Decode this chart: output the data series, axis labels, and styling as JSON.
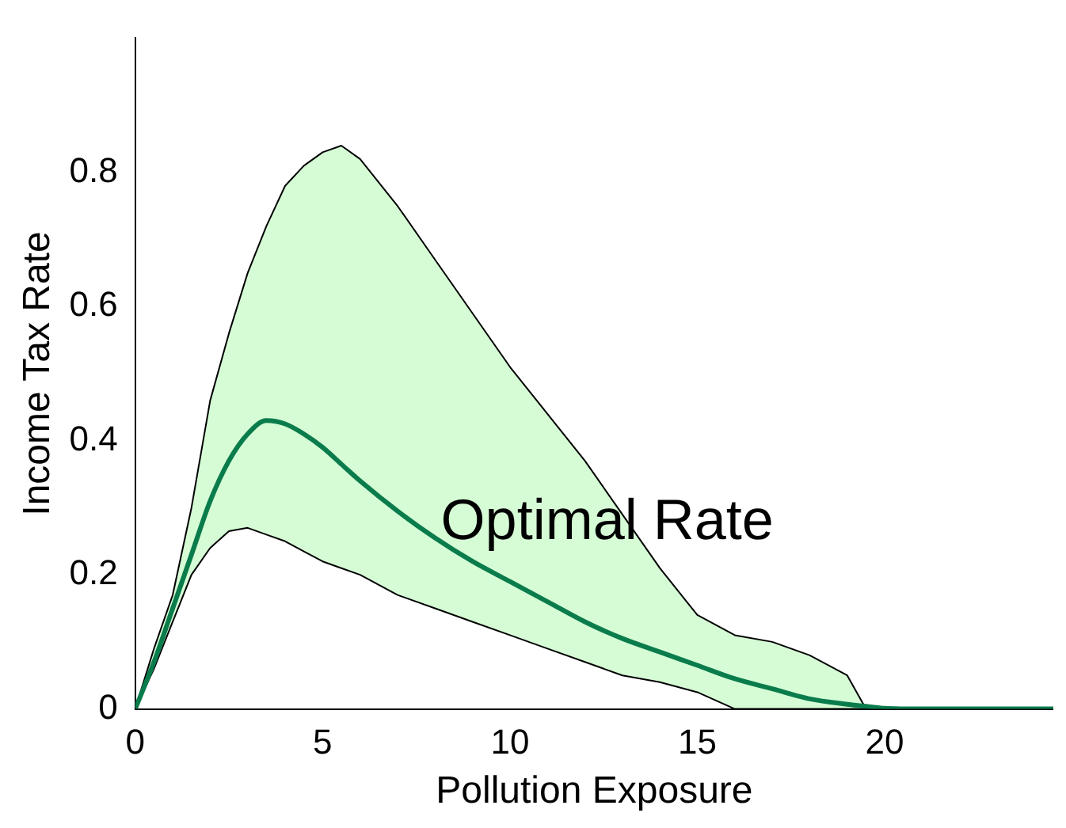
{
  "chart_data": {
    "type": "line",
    "xlabel": "Pollution Exposure",
    "ylabel": "Income Tax Rate",
    "xlim": [
      0,
      24.5
    ],
    "xticks": [
      0,
      5,
      10,
      15,
      20
    ],
    "ylim": [
      0,
      1
    ],
    "yticks": [
      0,
      0.2,
      0.4,
      0.6,
      0.8
    ],
    "grid": false,
    "legend": false,
    "marker": "none",
    "line_style": "solid",
    "x": [
      0,
      0.5,
      1,
      1.5,
      2,
      2.5,
      3,
      3.5,
      4,
      4.5,
      5,
      5.5,
      6,
      7,
      8,
      9,
      10,
      11,
      12,
      13,
      14,
      15,
      16,
      17,
      18,
      19,
      19.5,
      20,
      21,
      22,
      24.5
    ],
    "series": [
      {
        "name": "Optimal Rate",
        "color": "#0a7c4c",
        "values": [
          0,
          0.07,
          0.15,
          0.23,
          0.31,
          0.37,
          0.41,
          0.43,
          0.425,
          0.41,
          0.39,
          0.365,
          0.34,
          0.295,
          0.255,
          0.22,
          0.19,
          0.16,
          0.13,
          0.105,
          0.085,
          0.065,
          0.045,
          0.03,
          0.015,
          0.007,
          0.004,
          0.001,
          0,
          0,
          0
        ],
        "lower": [
          0,
          0.06,
          0.13,
          0.2,
          0.24,
          0.265,
          0.27,
          0.26,
          0.25,
          0.235,
          0.22,
          0.21,
          0.2,
          0.17,
          0.15,
          0.13,
          0.11,
          0.09,
          0.07,
          0.05,
          0.04,
          0.025,
          0,
          0,
          0,
          0,
          0,
          null,
          null,
          null,
          null
        ],
        "upper": [
          0,
          0.09,
          0.17,
          0.3,
          0.46,
          0.56,
          0.65,
          0.72,
          0.78,
          0.81,
          0.83,
          0.84,
          0.82,
          0.75,
          0.67,
          0.59,
          0.51,
          0.44,
          0.37,
          0.29,
          0.21,
          0.14,
          0.11,
          0.1,
          0.08,
          0.05,
          0,
          null,
          null,
          null,
          null
        ]
      }
    ]
  }
}
